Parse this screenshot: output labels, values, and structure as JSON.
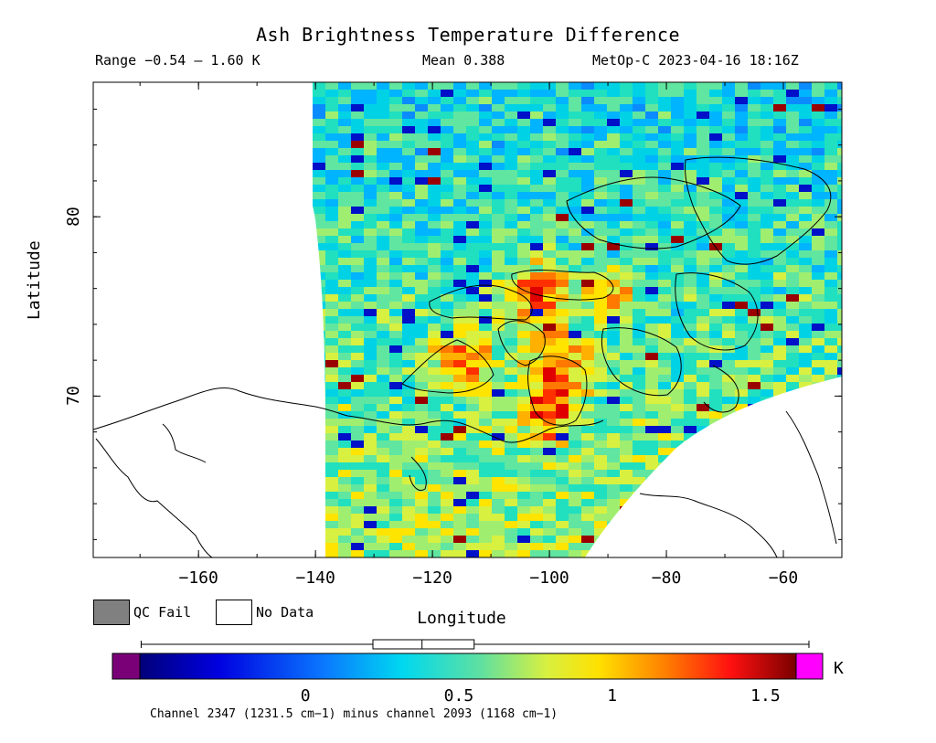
{
  "title": "Ash Brightness Temperature Difference",
  "range_text": "Range −0.54 – 1.60 K",
  "mean_text": "Mean 0.388",
  "satellite_text": "MetOp-C 2023-04-16 18:16Z",
  "axes": {
    "xlabel": "Longitude",
    "ylabel": "Latitude",
    "x_ticks": [
      "−160",
      "−140",
      "−120",
      "−100",
      "−80",
      "−60"
    ],
    "y_ticks": [
      "70",
      "80"
    ],
    "x_range": [
      -178,
      -50
    ],
    "y_range": [
      61,
      87.5
    ]
  },
  "legend": {
    "qc_fail_label": "QC Fail",
    "no_data_label": "No Data",
    "qc_fail_color": "#808080",
    "no_data_color": "#ffffff"
  },
  "colorbar": {
    "tick_labels": [
      "0",
      "0.5",
      "1",
      "1.5"
    ],
    "unit": "K",
    "min": -0.54,
    "max": 1.6,
    "under_color": "#7a0078",
    "over_color": "#ff00ff",
    "box_plot": {
      "whisker_low": -0.5,
      "q1": 0.22,
      "median": 0.38,
      "q3": 0.55,
      "whisker_high": 1.6
    }
  },
  "footnote": "Channel 2347 (1231.5 cm−1) minus channel 2093 (1168 cm−1)"
}
